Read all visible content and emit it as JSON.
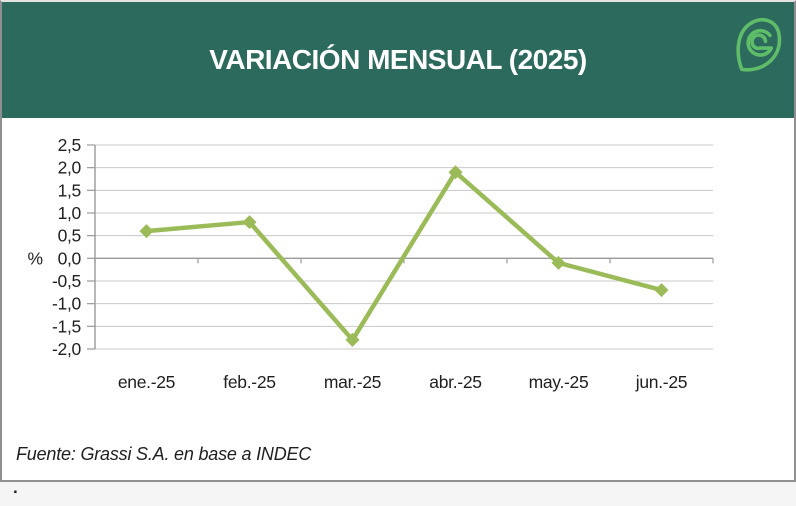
{
  "header": {
    "title": "VARIACIÓN MENSUAL (2025)",
    "logo_icon": "grassi-leaf-logo"
  },
  "footer": {
    "source": "Fuente: Grassi S.A. en base a INDEC",
    "stray_period": "."
  },
  "colors": {
    "header_bg": "#2D6A5E",
    "logo_green": "#5FBC68",
    "line_green": "#9BBB59",
    "grid_gray": "#C9C9C9",
    "axis_gray": "#9A9A9A",
    "text_dark": "#1F1F1F",
    "card_border": "#8F8F8F",
    "page_bg": "#F5F5F5"
  },
  "chart_data": {
    "type": "line",
    "title": "VARIACIÓN MENSUAL (2025)",
    "categories": [
      "ene.-25",
      "feb.-25",
      "mar.-25",
      "abr.-25",
      "may.-25",
      "jun.-25"
    ],
    "series": [
      {
        "name": "Variación mensual",
        "values": [
          0.6,
          0.8,
          -1.8,
          1.9,
          -0.1,
          -0.7
        ]
      }
    ],
    "xlabel": "",
    "ylabel": "%",
    "ylim": [
      -2.0,
      2.5
    ],
    "ytick_step": 0.5,
    "ytick_labels": [
      "2,5",
      "2,0",
      "1,5",
      "1,0",
      "0,5",
      "0,0",
      "-0,5",
      "-1,0",
      "-1,5",
      "-2,0"
    ],
    "grid": true,
    "legend": "none",
    "marker": "diamond",
    "line_color": "#9BBB59",
    "source_note": "Fuente: Grassi S.A. en base a INDEC"
  }
}
